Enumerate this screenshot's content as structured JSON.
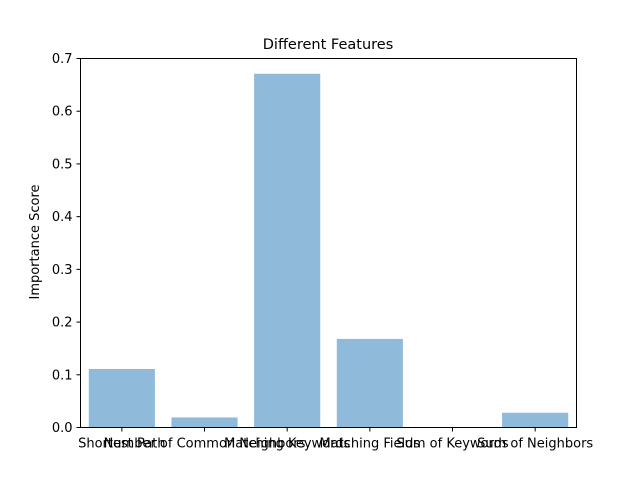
{
  "chart_data": {
    "type": "bar",
    "title": "Different Features",
    "ylabel": "Importance Score",
    "xlabel": "",
    "categories": [
      "Shortest Path",
      "Number of Common Neighbors",
      "Matching Keywords",
      "Matching Fields",
      "Sum of Keywords",
      "Sum of Neighbors"
    ],
    "values": [
      0.111,
      0.019,
      0.671,
      0.168,
      0.0,
      0.028
    ],
    "ylim": [
      0,
      0.7
    ],
    "yticks": [
      "0.0",
      "0.1",
      "0.2",
      "0.3",
      "0.4",
      "0.5",
      "0.6",
      "0.7"
    ],
    "grid": false,
    "bar_color": "#8fbad9"
  }
}
